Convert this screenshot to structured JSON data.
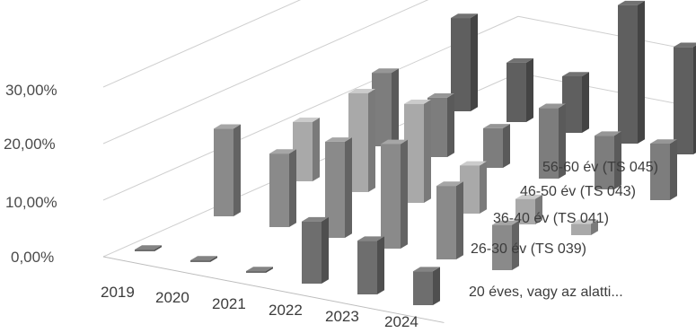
{
  "chart_data": {
    "type": "bar",
    "subtype": "3d-column",
    "categories": [
      "2019",
      "2020",
      "2021",
      "2022",
      "2023",
      "2024"
    ],
    "series": [
      {
        "name": "20 éves, vagy az alatti...",
        "values": [
          0.3,
          0.2,
          0.2,
          11.0,
          9.5,
          6.0
        ]
      },
      {
        "name": "26-30 év (TS 039)",
        "values": [
          15.5,
          13.0,
          17.0,
          18.5,
          13.0,
          8.0
        ]
      },
      {
        "name": "36-40 év (TS 041)",
        "values": [
          10.5,
          17.5,
          17.5,
          8.5,
          4.5,
          2.0
        ]
      },
      {
        "name": "46-50 év (TS 043)",
        "values": [
          13.0,
          10.5,
          7.0,
          12.5,
          9.5,
          10.0
        ]
      },
      {
        "name": "56-60 év (TS 045)",
        "values": [
          16.5,
          10.5,
          10.0,
          24.5,
          19.0,
          24.0
        ]
      }
    ],
    "y_ticks": [
      "0,00%",
      "10,00%",
      "20,00%",
      "30,00%"
    ],
    "ylim": [
      0,
      30
    ],
    "grid": true,
    "legend": "none",
    "colors": [
      "#6e6e6e",
      "#8a8a8a",
      "#a9a9a9",
      "#7d7d7d",
      "#5f5f5f"
    ]
  }
}
